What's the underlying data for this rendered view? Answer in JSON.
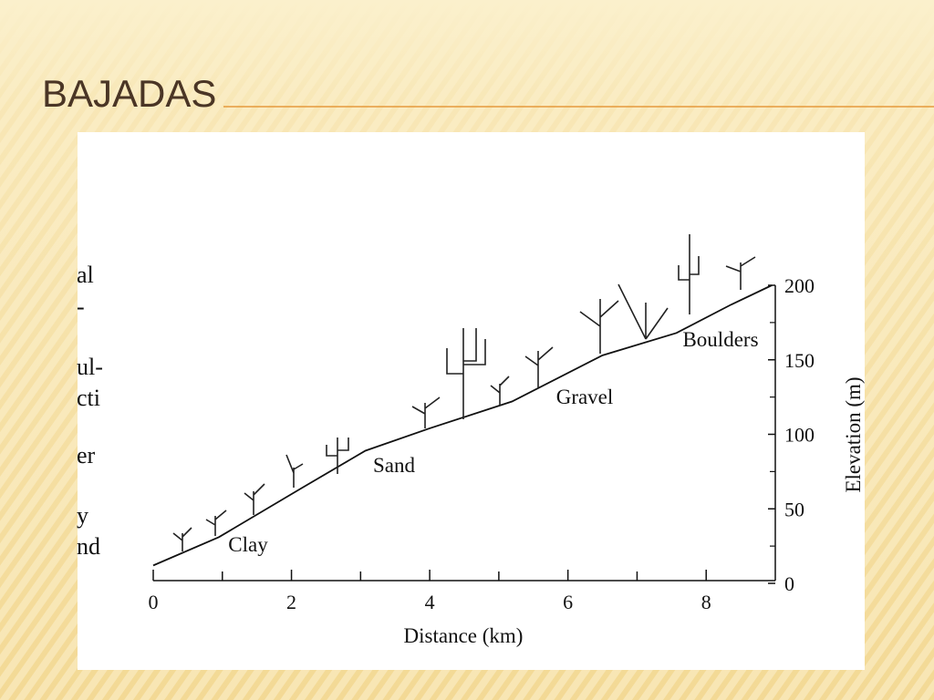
{
  "title": "BAJADAS",
  "margin_fragments": [
    "al",
    "-",
    "ul-",
    "cti",
    "er",
    "y",
    "nd"
  ],
  "chart_data": {
    "type": "line",
    "x": [
      0,
      0.95,
      2.15,
      3.07,
      4.0,
      5.19,
      6.5,
      7.57,
      8.36,
      8.95
    ],
    "values": [
      12,
      31,
      64,
      89,
      104,
      122,
      153,
      168,
      187,
      200
    ],
    "color": "#111111",
    "xlim": [
      0,
      9
    ],
    "xticks": [
      0,
      2,
      4,
      6,
      8
    ],
    "xminor_ticks": [
      1,
      3,
      5,
      7
    ],
    "ylim": [
      0,
      200
    ],
    "yticks": [
      0,
      50,
      100,
      150,
      200
    ],
    "yminor_ticks": [
      25,
      75,
      125,
      175
    ],
    "y_axis_side": "right",
    "xlabel": "Distance (km)",
    "ylabel": "Elevation (m)",
    "annotations": [
      "Clay",
      "Sand",
      "Gravel",
      "Boulders"
    ]
  }
}
